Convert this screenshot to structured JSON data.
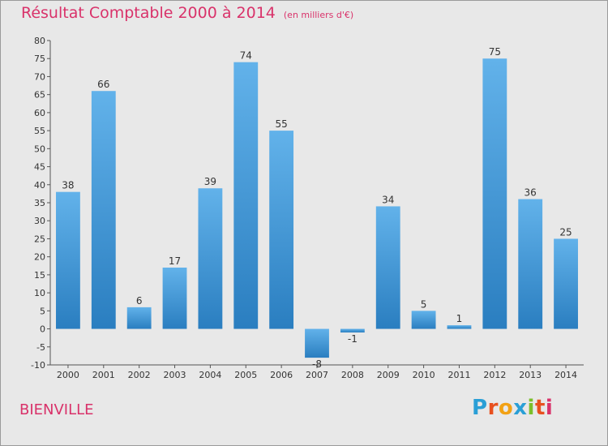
{
  "header": {
    "title": "Résultat Comptable 2000 à 2014",
    "subtitle": "(en milliers d'€)"
  },
  "footer": {
    "commune": "BIENVILLE",
    "logo": {
      "text": "Proxiti",
      "letter_colors": [
        "#2a9fd6",
        "#e8501f",
        "#f2a114",
        "#2a9fd6",
        "#7bbf2a",
        "#e8501f",
        "#d9326a"
      ]
    }
  },
  "colors": {
    "accent": "#d9326a",
    "bar_light": "#62b2ea",
    "bar_dark": "#2a7ec0",
    "plot_background": "#e8e8e8"
  },
  "chart_data": {
    "type": "bar",
    "title": "Résultat Comptable 2000 à 2014",
    "subtitle": "(en milliers d'€)",
    "categories": [
      "2000",
      "2001",
      "2002",
      "2003",
      "2004",
      "2005",
      "2006",
      "2007",
      "2008",
      "2009",
      "2010",
      "2011",
      "2012",
      "2013",
      "2014"
    ],
    "values": [
      38,
      66,
      6,
      17,
      39,
      74,
      55,
      -8,
      -1,
      34,
      5,
      1,
      75,
      36,
      25
    ],
    "ylim": [
      -10,
      80
    ],
    "yticks": [
      -10,
      -5,
      0,
      5,
      10,
      15,
      20,
      25,
      30,
      35,
      40,
      45,
      50,
      55,
      60,
      65,
      70,
      75,
      80
    ],
    "grid": false,
    "legend": "none",
    "xlabel": "",
    "ylabel": ""
  }
}
